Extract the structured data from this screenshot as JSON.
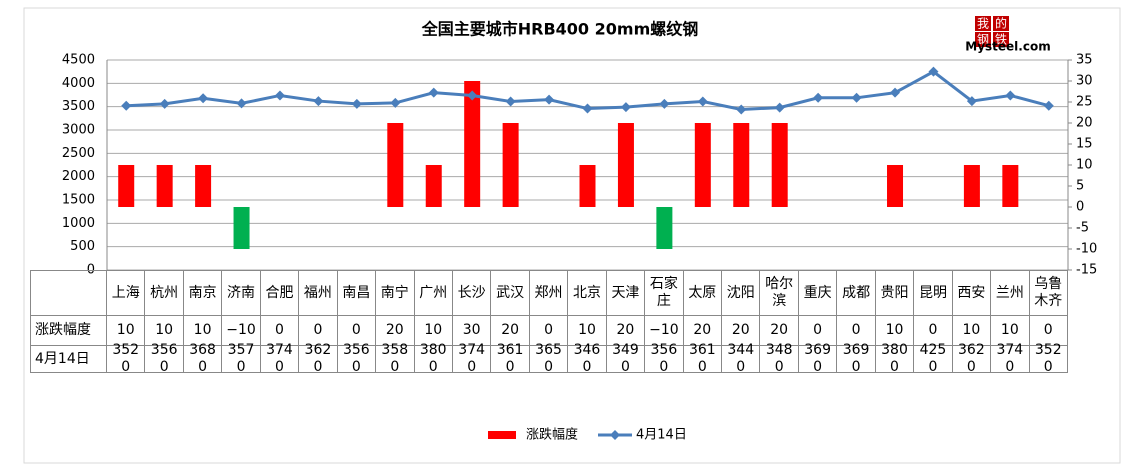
{
  "chart_data": {
    "type": "bar_line",
    "title": "全国主要城市HRB400 20mm螺纹钢",
    "logo": [
      "我",
      "的",
      "钢",
      "铁"
    ],
    "logo_text": "Mysteel.com",
    "categories": [
      "上海",
      "杭州",
      "南京",
      "济南",
      "合肥",
      "福州",
      "南昌",
      "南宁",
      "广州",
      "长沙",
      "武汉",
      "郑州",
      "北京",
      "天津",
      "石家庄",
      "太原",
      "沈阳",
      "哈尔滨",
      "重庆",
      "成都",
      "贵阳",
      "昆明",
      "西安",
      "兰州",
      "乌鲁木齐"
    ],
    "series": [
      {
        "name": "涨跌幅度",
        "type": "bar",
        "axis": "y2",
        "color": "#ff0000",
        "negative_color": "#00b050",
        "values": [
          10,
          10,
          10,
          -10,
          0,
          0,
          0,
          20,
          10,
          30,
          20,
          0,
          10,
          20,
          -10,
          20,
          20,
          20,
          0,
          0,
          10,
          0,
          10,
          10,
          0
        ],
        "value_labels": [
          "10",
          "10",
          "10",
          "−10",
          "0",
          "0",
          "0",
          "20",
          "10",
          "30",
          "20",
          "0",
          "10",
          "20",
          "−10",
          "20",
          "20",
          "20",
          "0",
          "0",
          "10",
          "0",
          "10",
          "10",
          "0"
        ]
      },
      {
        "name": "4月14日",
        "type": "line",
        "axis": "y",
        "color": "#4a7ebb",
        "values": [
          3520,
          3560,
          3680,
          3570,
          3740,
          3620,
          3560,
          3580,
          3800,
          3740,
          3610,
          3650,
          3460,
          3490,
          3560,
          3610,
          3440,
          3480,
          3690,
          3690,
          3800,
          4250,
          3620,
          3740,
          3520
        ]
      }
    ],
    "ylim": [
      0,
      4500
    ],
    "yticks": [
      0,
      500,
      1000,
      1500,
      2000,
      2500,
      3000,
      3500,
      4000,
      4500
    ],
    "y2lim": [
      -15,
      35
    ],
    "y2ticks": [
      -15,
      -10,
      -5,
      0,
      5,
      10,
      15,
      20,
      25,
      30,
      35
    ],
    "grid": true,
    "legend": "bottom"
  }
}
